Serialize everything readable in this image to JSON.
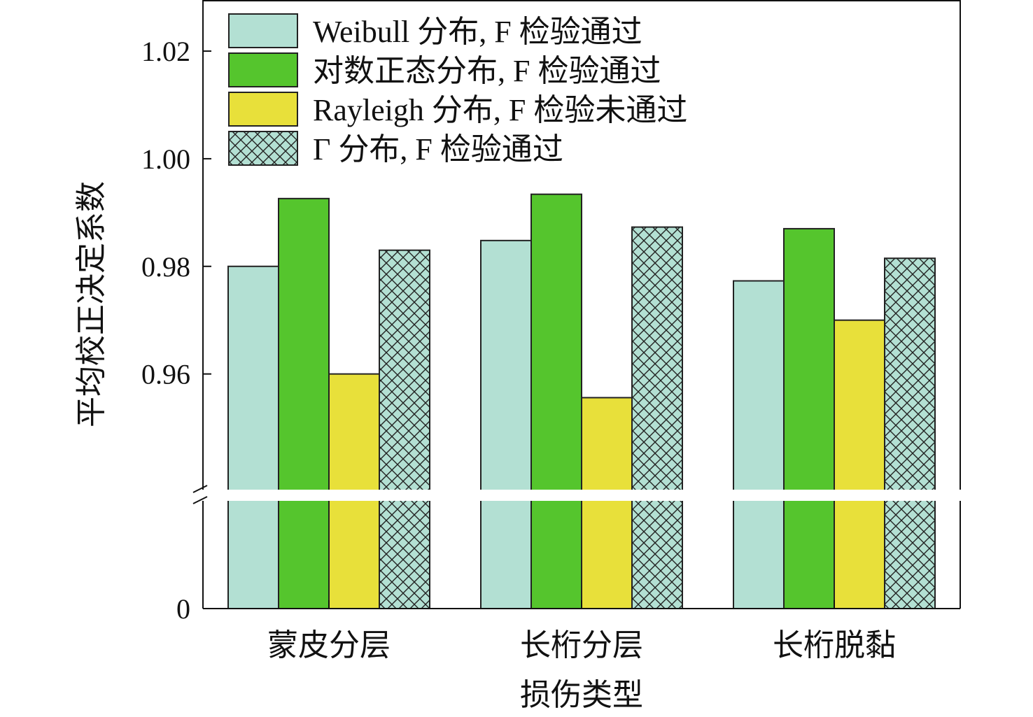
{
  "chart_data": {
    "type": "bar",
    "xlabel": "损伤类型",
    "ylabel": "平均校正决定系数",
    "categories": [
      "蒙皮分层",
      "长桁分层",
      "长桁脱黏"
    ],
    "yticks": [
      "0",
      "0.96",
      "0.98",
      "1.00",
      "1.02"
    ],
    "upper_ylim": [
      0.9385,
      1.0295
    ],
    "broken_axis": true,
    "series": [
      {
        "name": "Weibull 分布, F 检验通过",
        "values": [
          0.98,
          0.9848,
          0.9773
        ],
        "color": "#b3e0d3",
        "pattern": "solid"
      },
      {
        "name": "对数正态分布, F 检验通过",
        "values": [
          0.9926,
          0.9934,
          0.987
        ],
        "color": "#55c52d",
        "pattern": "solid"
      },
      {
        "name": "Rayleigh 分布, F 检验未通过",
        "values": [
          0.96,
          0.9556,
          0.97
        ],
        "color": "#e8e03a",
        "pattern": "solid"
      },
      {
        "name": "Γ 分布, F 检验通过",
        "values": [
          0.983,
          0.9873,
          0.9815
        ],
        "color": "#b3e0d3",
        "pattern": "crosshatch"
      }
    ],
    "legend_position": "top-left",
    "grid": false
  }
}
